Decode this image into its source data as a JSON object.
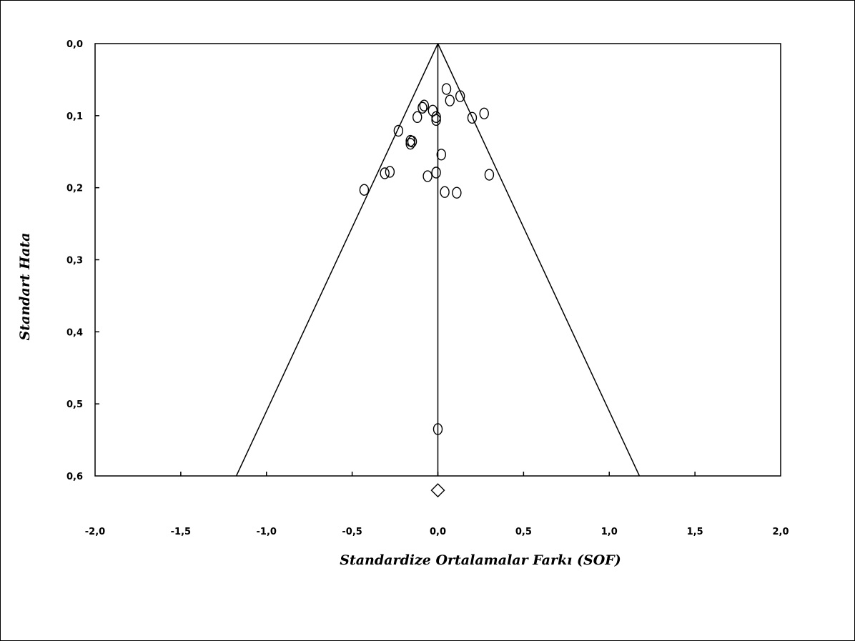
{
  "chart_data": {
    "type": "scatter",
    "title": "",
    "xlabel": "Standardize Ortalamalar Farkı (SOF)",
    "ylabel": "Standart Hata",
    "xlim": [
      -2.0,
      2.0
    ],
    "ylim": [
      0.0,
      0.6
    ],
    "y_inverted": true,
    "grid": false,
    "x_ticks": [
      "-2,0",
      "-1,5",
      "-1,0",
      "-0,5",
      "0,0",
      "0,5",
      "1,0",
      "1,5",
      "2,0"
    ],
    "y_ticks": [
      "0,0",
      "0,1",
      "0,2",
      "0,3",
      "0,4",
      "0,5",
      "0,6"
    ],
    "x_tick_values": [
      -2.0,
      -1.5,
      -1.0,
      -0.5,
      0.0,
      0.5,
      1.0,
      1.5,
      2.0
    ],
    "y_tick_values": [
      0.0,
      0.1,
      0.2,
      0.3,
      0.4,
      0.5,
      0.6
    ],
    "pooled_effect": 0.0,
    "funnel_z": 1.96,
    "summary_marker": {
      "x": 0.0,
      "y": 0.62,
      "shape": "diamond"
    },
    "points": [
      {
        "x": 0.05,
        "y": 0.063
      },
      {
        "x": 0.13,
        "y": 0.073
      },
      {
        "x": 0.07,
        "y": 0.079
      },
      {
        "x": -0.08,
        "y": 0.086
      },
      {
        "x": -0.09,
        "y": 0.089
      },
      {
        "x": -0.03,
        "y": 0.093
      },
      {
        "x": 0.27,
        "y": 0.097
      },
      {
        "x": -0.12,
        "y": 0.102
      },
      {
        "x": -0.01,
        "y": 0.102
      },
      {
        "x": 0.2,
        "y": 0.103
      },
      {
        "x": -0.01,
        "y": 0.106
      },
      {
        "x": -0.23,
        "y": 0.121
      },
      {
        "x": -0.16,
        "y": 0.135
      },
      {
        "x": -0.15,
        "y": 0.136
      },
      {
        "x": -0.16,
        "y": 0.139
      },
      {
        "x": 0.02,
        "y": 0.154
      },
      {
        "x": -0.28,
        "y": 0.178
      },
      {
        "x": -0.31,
        "y": 0.18
      },
      {
        "x": -0.01,
        "y": 0.179
      },
      {
        "x": 0.3,
        "y": 0.182
      },
      {
        "x": -0.06,
        "y": 0.184
      },
      {
        "x": 0.04,
        "y": 0.206
      },
      {
        "x": 0.11,
        "y": 0.207
      },
      {
        "x": -0.43,
        "y": 0.203
      },
      {
        "x": 0.0,
        "y": 0.535
      }
    ]
  }
}
